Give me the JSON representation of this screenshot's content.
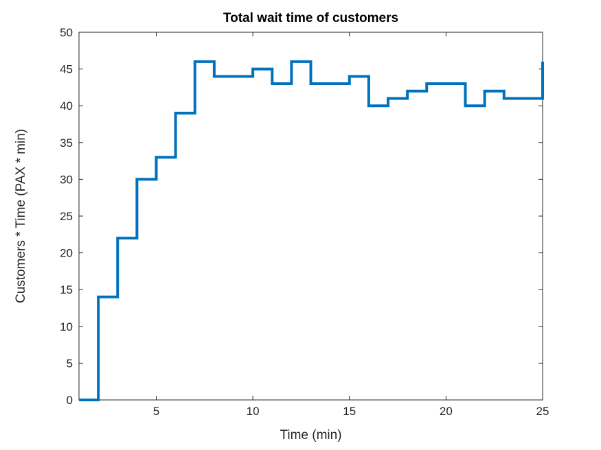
{
  "chart_data": {
    "type": "line",
    "style": "stairs",
    "title": "Total wait time of customers",
    "xlabel": "Time (min)",
    "ylabel": "Customers * Time (PAX * min)",
    "x": [
      1,
      2,
      3,
      4,
      5,
      6,
      7,
      8,
      9,
      10,
      11,
      12,
      13,
      14,
      15,
      16,
      17,
      18,
      19,
      20,
      21,
      22,
      23,
      24,
      25
    ],
    "y": [
      0,
      14,
      22,
      30,
      33,
      39,
      46,
      44,
      44,
      45,
      43,
      46,
      43,
      43,
      44,
      40,
      41,
      42,
      43,
      43,
      40,
      42,
      41,
      41,
      46
    ],
    "xlim": [
      1,
      25
    ],
    "ylim": [
      0,
      50
    ],
    "x_ticks": [
      5,
      10,
      15,
      20,
      25
    ],
    "y_ticks": [
      0,
      5,
      10,
      15,
      20,
      25,
      30,
      35,
      40,
      45,
      50
    ],
    "grid": "off",
    "legend": "none",
    "box": "on",
    "colors": {
      "line": "#0072BD",
      "axis": "#262626",
      "title": "#000000",
      "background": "#FFFFFF"
    }
  }
}
